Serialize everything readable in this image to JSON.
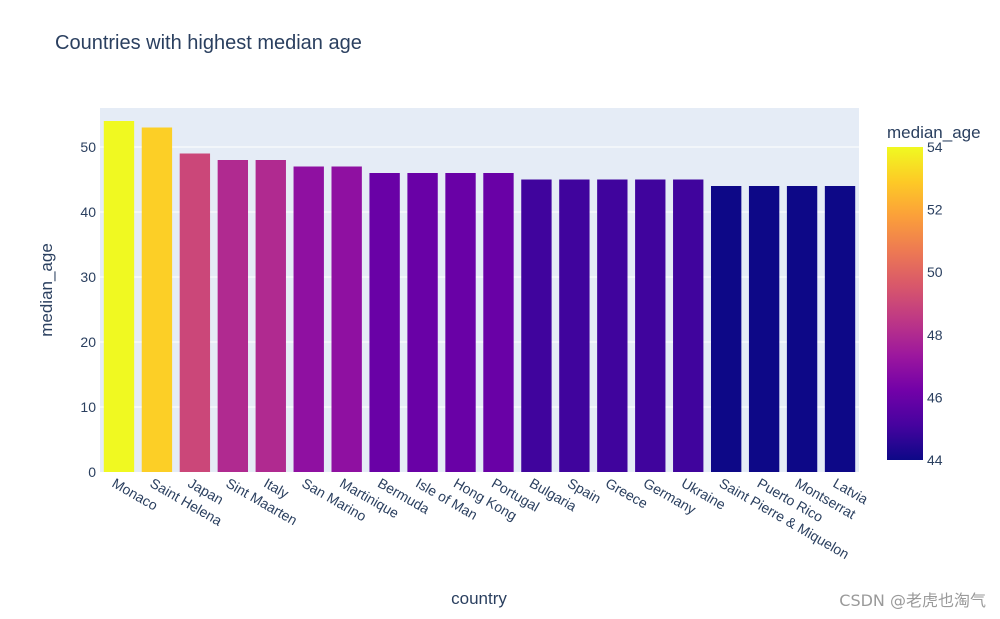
{
  "chart_data": {
    "type": "bar",
    "title": "Countries with highest median age",
    "xlabel": "country",
    "ylabel": "median_age",
    "categories": [
      "Monaco",
      "Saint Helena",
      "Japan",
      "Sint Maarten",
      "Italy",
      "San Marino",
      "Martinique",
      "Bermuda",
      "Isle of Man",
      "Hong Kong",
      "Portugal",
      "Bulgaria",
      "Spain",
      "Greece",
      "Germany",
      "Ukraine",
      "Saint Pierre & Miquelon",
      "Puerto Rico",
      "Montserrat",
      "Latvia"
    ],
    "values": [
      54,
      53,
      49,
      48,
      48,
      47,
      47,
      46,
      46,
      46,
      46,
      45,
      45,
      45,
      45,
      45,
      44,
      44,
      44,
      44
    ],
    "ylim": [
      0,
      56
    ],
    "yticks": [
      0,
      10,
      20,
      30,
      40,
      50
    ],
    "grid": true,
    "colorbar": {
      "title": "median_age",
      "range": [
        44,
        54
      ],
      "ticks": [
        44,
        46,
        48,
        50,
        52,
        54
      ],
      "colorscale": [
        "#0d0887",
        "#46039f",
        "#7201a8",
        "#9c179e",
        "#bd3786",
        "#d8576b",
        "#ed7953",
        "#fb9f3a",
        "#fdca26",
        "#f0f921"
      ]
    }
  },
  "watermark": "CSDN @老虎也淘气",
  "colors": {
    "plot_bg": "#e5ecf6",
    "grid": "#ffffff",
    "text": "#2a3f5f"
  }
}
